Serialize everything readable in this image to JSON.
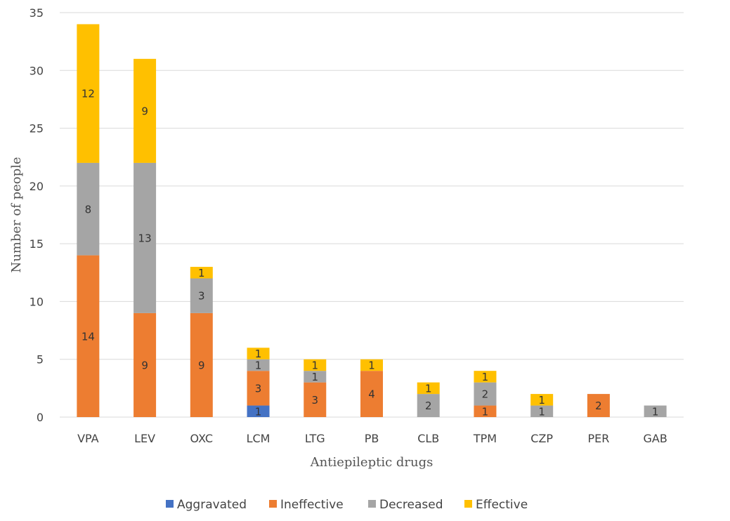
{
  "chart_data": {
    "type": "bar",
    "stacked": true,
    "title": "",
    "xlabel": "Antiepileptic drugs",
    "ylabel": "Number of people",
    "ylim": [
      0,
      35
    ],
    "yticks": [
      "0",
      "5",
      "10",
      "15",
      "20",
      "25",
      "30",
      "35"
    ],
    "grid": true,
    "legend_position": "bottom",
    "categories": [
      "VPA",
      "LEV",
      "OXC",
      "LCM",
      "LTG",
      "PB",
      "CLB",
      "TPM",
      "CZP",
      "PER",
      "GAB"
    ],
    "series": [
      {
        "name": "Aggravated",
        "color": "#4472c4",
        "values": [
          0,
          0,
          0,
          1,
          0,
          0,
          0,
          0,
          0,
          0,
          0
        ]
      },
      {
        "name": "Ineffective",
        "color": "#ed7d31",
        "values": [
          14,
          9,
          9,
          3,
          3,
          4,
          0,
          1,
          0,
          2,
          0
        ]
      },
      {
        "name": "Decreased",
        "color": "#a5a5a5",
        "values": [
          8,
          13,
          3,
          1,
          1,
          0,
          2,
          2,
          1,
          0,
          1
        ]
      },
      {
        "name": "Effective",
        "color": "#ffc000",
        "values": [
          12,
          9,
          1,
          1,
          1,
          1,
          1,
          1,
          1,
          0,
          0
        ]
      }
    ]
  }
}
